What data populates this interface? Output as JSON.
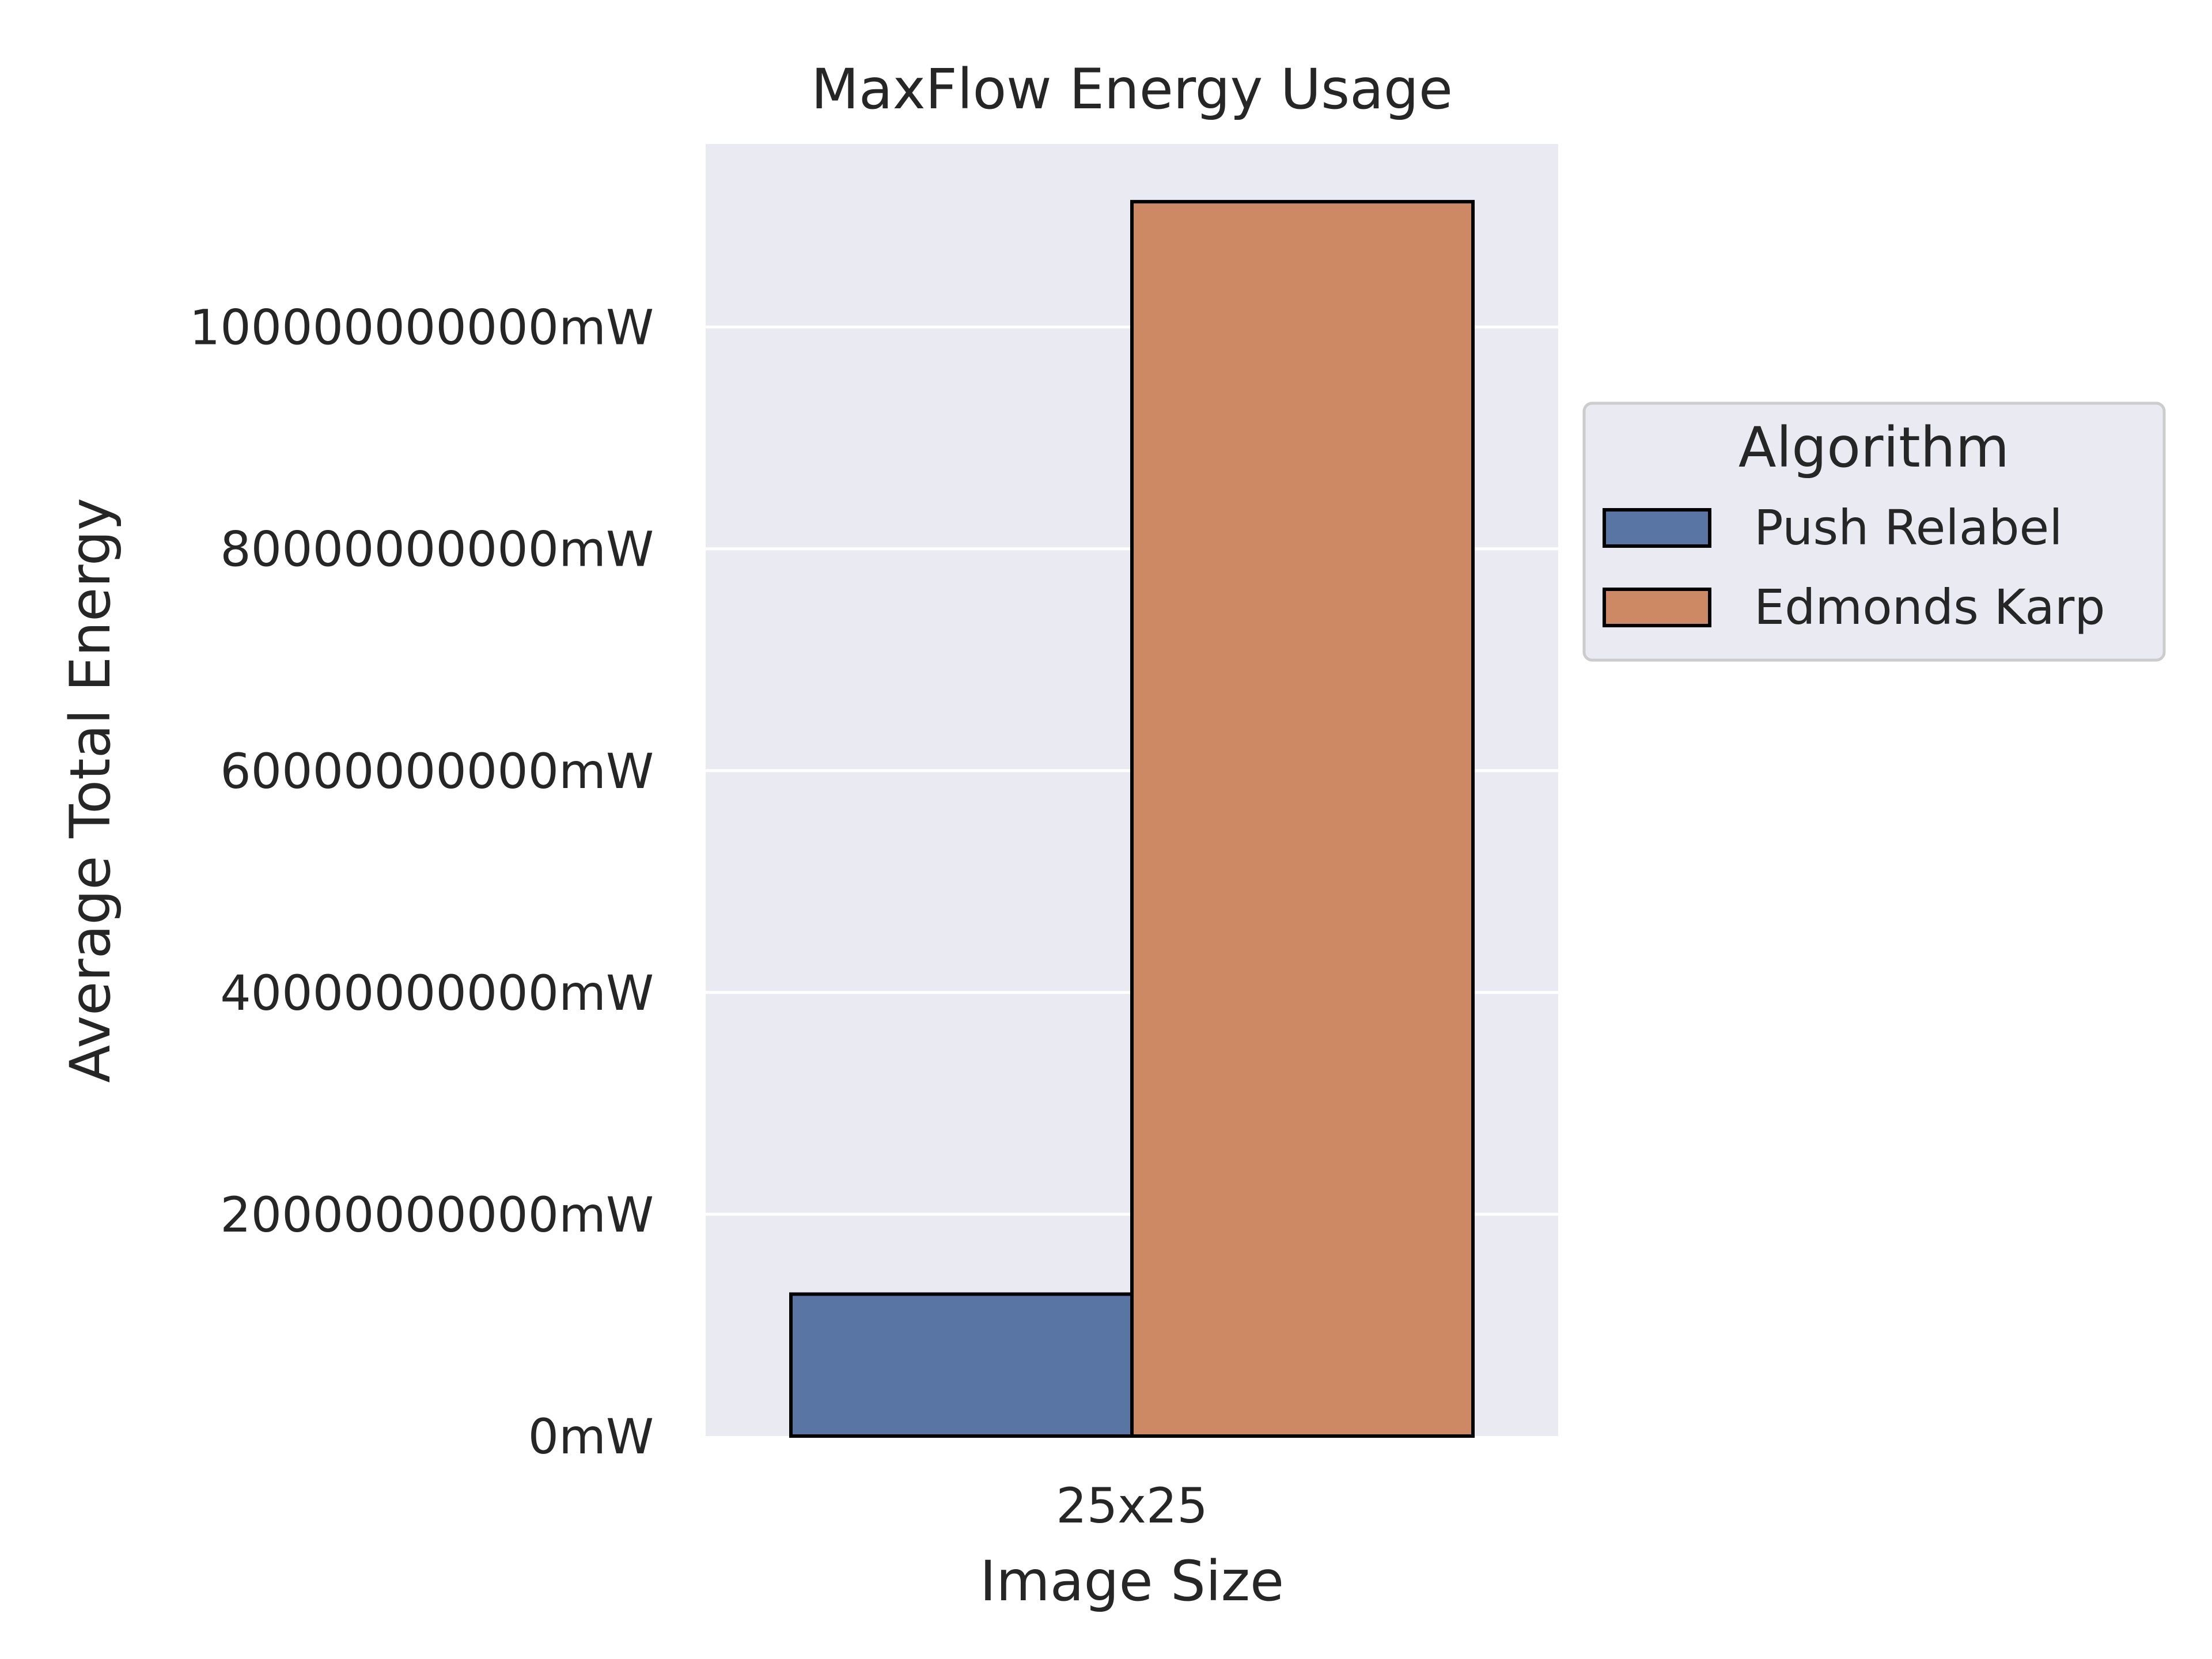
{
  "chart_data": {
    "type": "bar",
    "title": "MaxFlow Energy Usage",
    "xlabel": "Image Size",
    "ylabel": "Average Total Energy",
    "categories": [
      "25x25"
    ],
    "series": [
      {
        "name": "Push Relabel",
        "values": [
          12800000000
        ],
        "color": "#5975a4"
      },
      {
        "name": "Edmonds Karp",
        "values": [
          111300000000
        ],
        "color": "#cc8964"
      }
    ],
    "ylim": [
      0,
      116500000000
    ],
    "yticks": [
      0,
      20000000000,
      40000000000,
      60000000000,
      80000000000,
      100000000000
    ],
    "ytick_labels": [
      "0mW",
      "20000000000mW",
      "40000000000mW",
      "60000000000mW",
      "80000000000mW",
      "100000000000mW"
    ],
    "legend": {
      "title": "Algorithm",
      "position": "right, outside plot"
    },
    "grid": true,
    "style": {
      "plot_background": "#eaeaf2",
      "grid_color": "#ffffff",
      "bar_edge_color": "#000000"
    }
  }
}
